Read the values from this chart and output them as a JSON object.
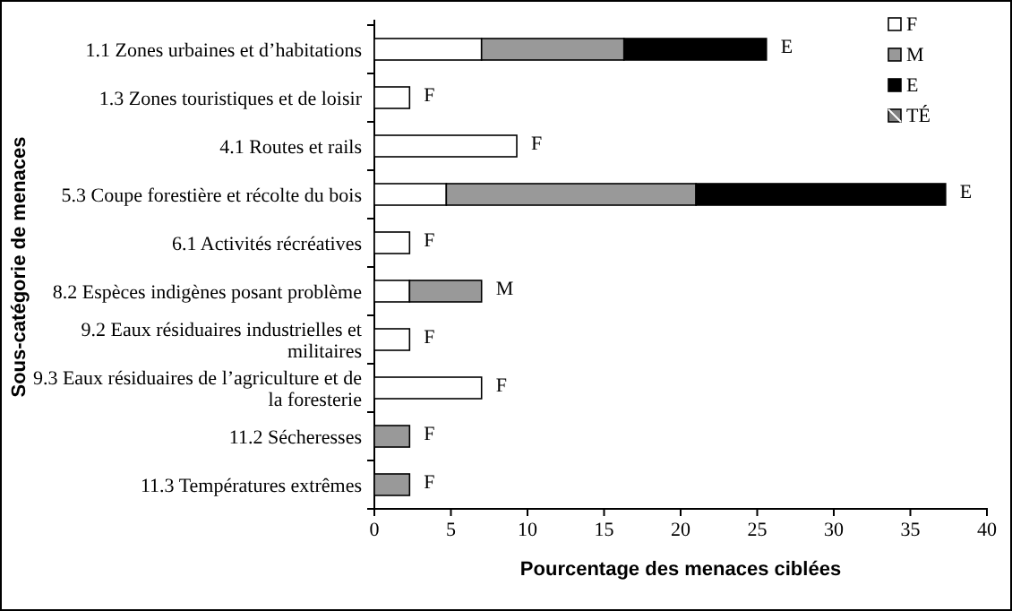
{
  "chart_data": {
    "type": "bar",
    "orientation": "horizontal",
    "stacked": true,
    "xlabel": "Pourcentage des menaces ciblées",
    "ylabel": "Sous-catégorie de menaces",
    "categories": [
      "1.1 Zones urbaines et d’habitations",
      "1.3 Zones touristiques et de loisir",
      "4.1 Routes et rails",
      "5.3 Coupe forestière et récolte du bois",
      "6.1 Activités récréatives",
      "8.2 Espèces indigènes posant problème",
      "9.2 Eaux résiduaires industrielles et militaires",
      "9.3 Eaux résiduaires de l’agriculture et de la foresterie",
      "11.2 Sécheresses",
      "11.3 Températures extrêmes"
    ],
    "series": [
      {
        "name": "F",
        "color": "#ffffff",
        "values": [
          7.0,
          2.3,
          9.3,
          4.7,
          2.3,
          2.3,
          2.3,
          7.0,
          null,
          null
        ]
      },
      {
        "name": "M",
        "color": "#999999",
        "values": [
          9.3,
          null,
          null,
          16.3,
          null,
          4.7,
          null,
          null,
          2.3,
          2.3
        ]
      },
      {
        "name": "E",
        "color": "#000000",
        "values": [
          9.3,
          null,
          null,
          16.3,
          null,
          null,
          null,
          null,
          null,
          null
        ]
      },
      {
        "name": "TÉ",
        "color": "#808080",
        "values": [
          null,
          null,
          null,
          null,
          null,
          null,
          null,
          null,
          null,
          null
        ]
      }
    ],
    "xlim": [
      0,
      40
    ],
    "xticks": [
      0,
      5,
      10,
      15,
      20,
      25,
      30,
      35,
      40
    ],
    "grid": false,
    "legend": "top right",
    "annotations": [
      {
        "text": "E",
        "x": 25.6,
        "y": "1.1 Zones urbaines et d’habitations"
      },
      {
        "text": "F",
        "x": 2.3,
        "y": "1.3 Zones touristiques et de loisir"
      },
      {
        "text": "F",
        "x": 9.3,
        "y": "4.1 Routes et rails"
      },
      {
        "text": "E",
        "x": 37.3,
        "y": "5.3 Coupe forestière et récolte du bois"
      },
      {
        "text": "F",
        "x": 2.3,
        "y": "6.1 Activités récréatives"
      },
      {
        "text": "M",
        "x": 7.0,
        "y": "8.2 Espèces indigènes posant problème"
      },
      {
        "text": "F",
        "x": 2.3,
        "y": "9.2 Eaux résiduaires industrielles et militaires"
      },
      {
        "text": "F",
        "x": 7.0,
        "y": "9.3 Eaux résiduaires de l’agriculture et de la foresterie"
      },
      {
        "text": "F",
        "x": 2.3,
        "y": "11.2 Sécheresses"
      },
      {
        "text": "F",
        "x": 2.3,
        "y": "11.3 Températures extrêmes"
      }
    ]
  }
}
